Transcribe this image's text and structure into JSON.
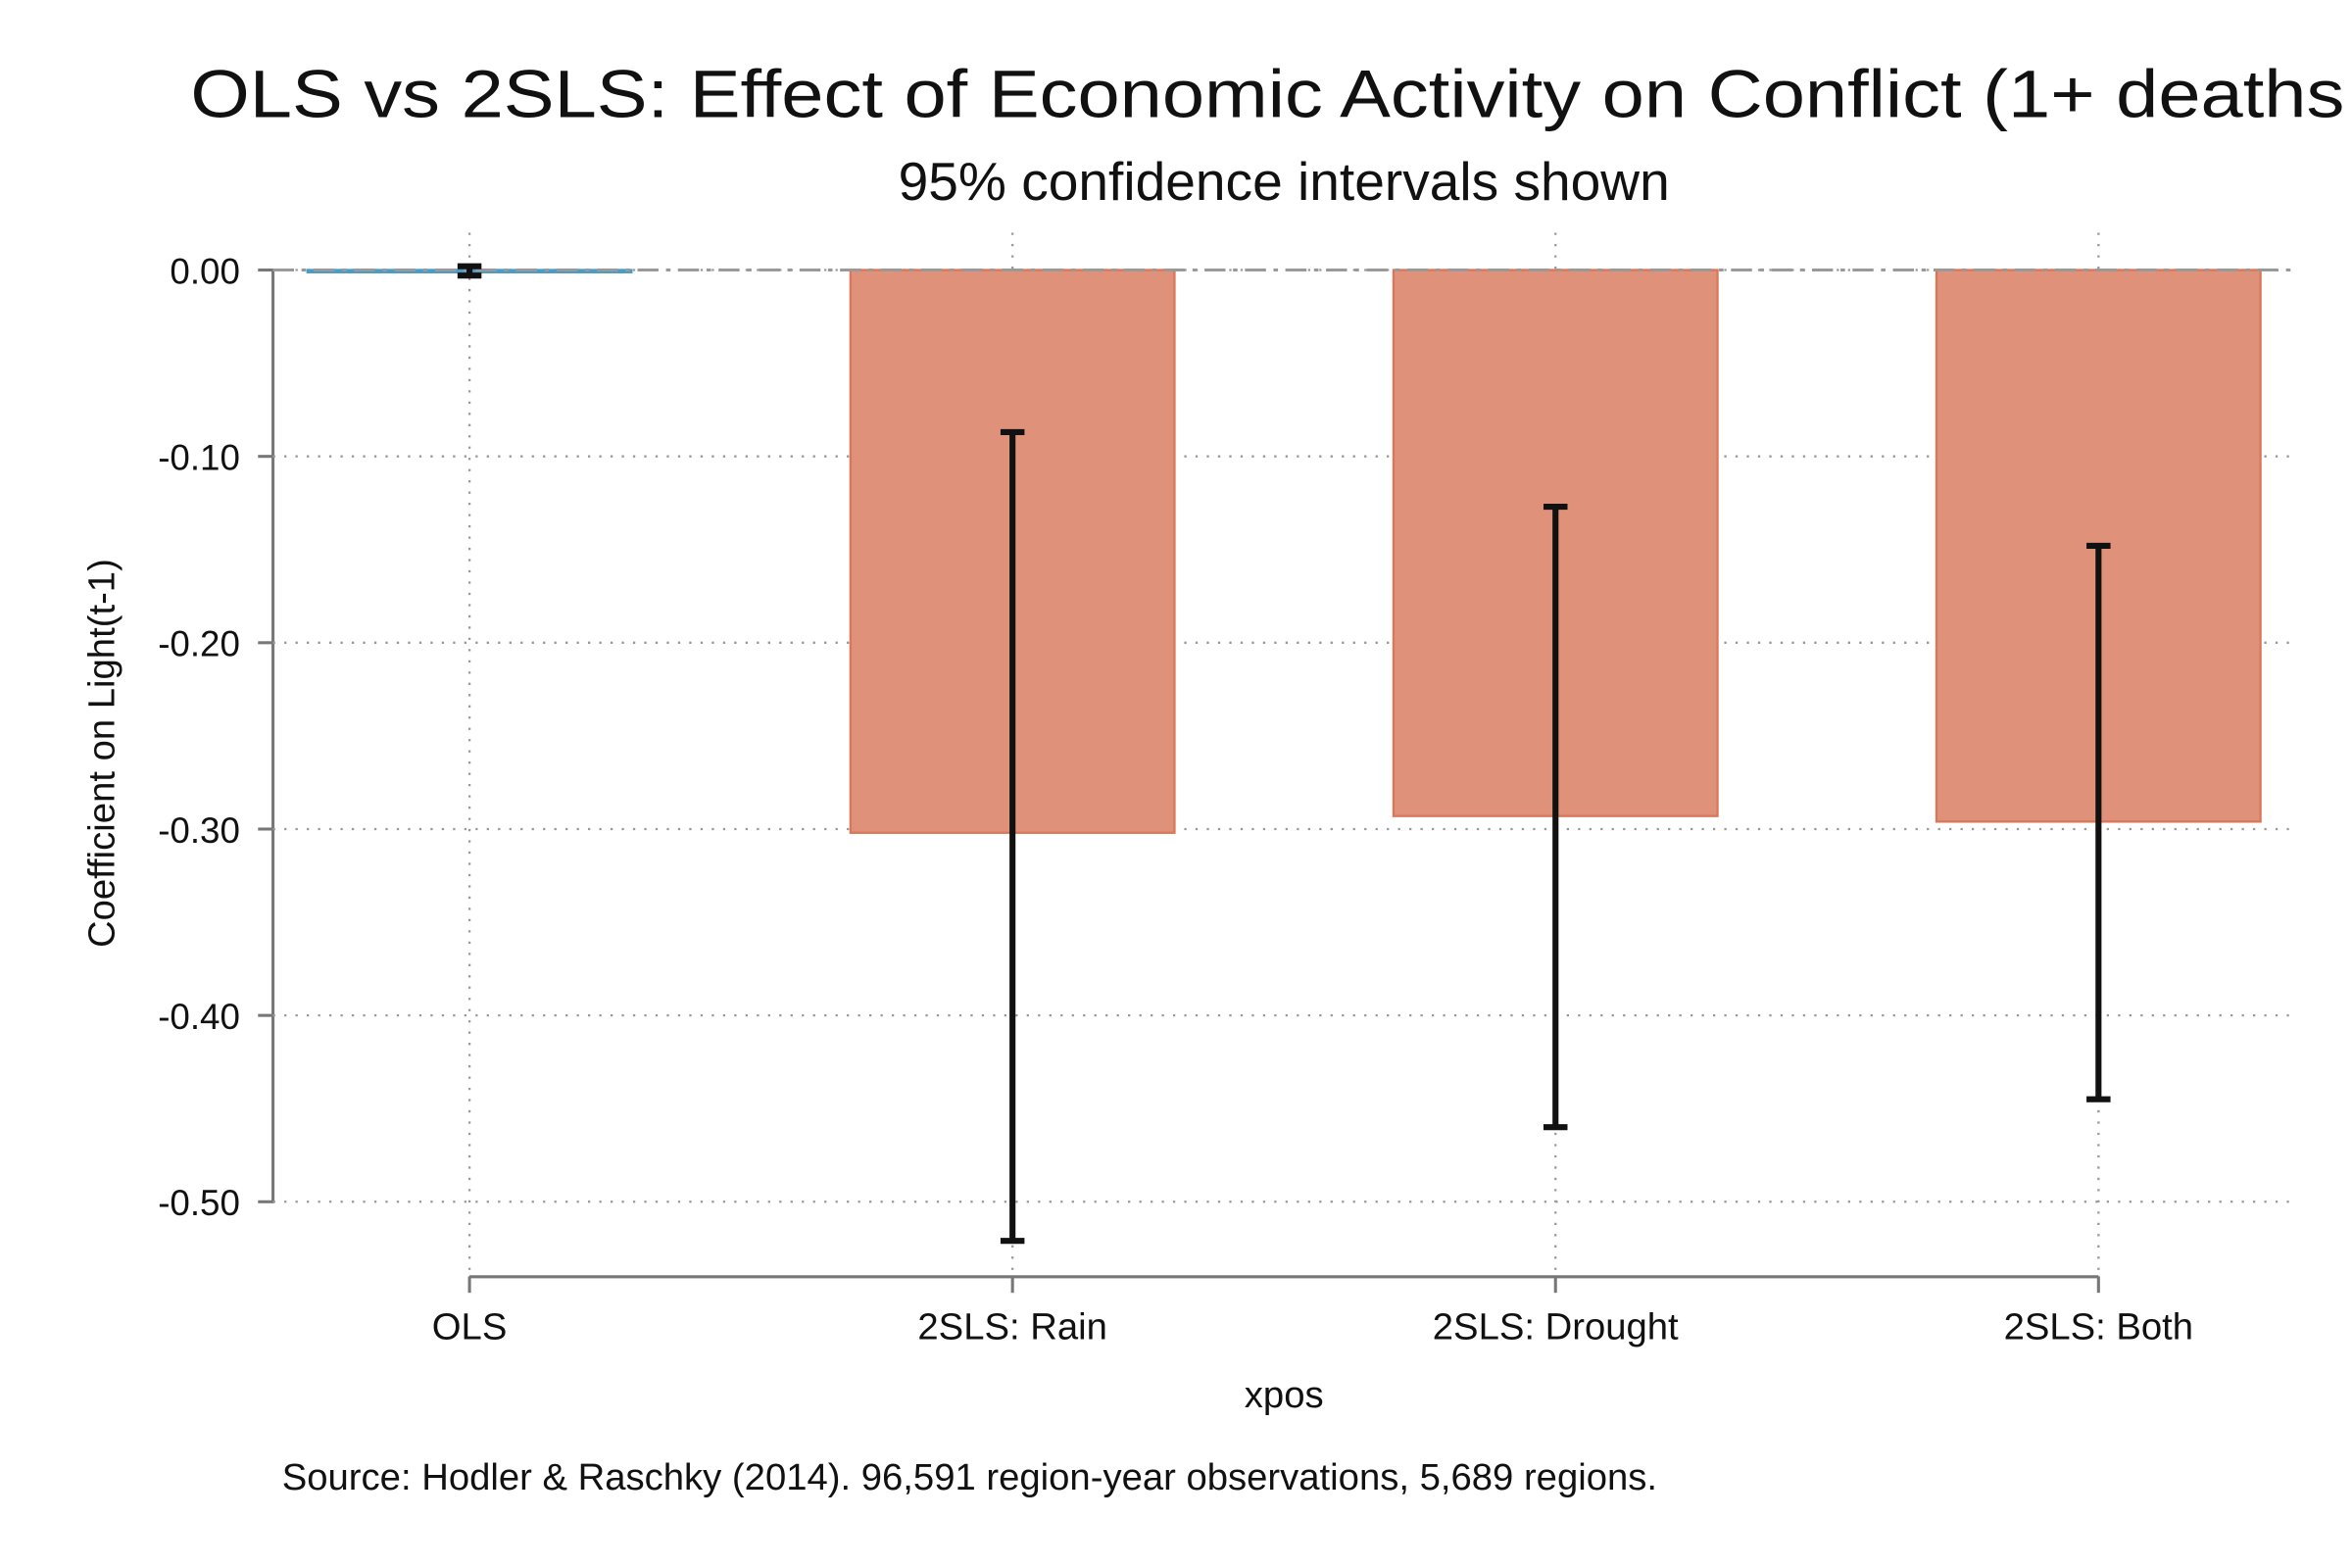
{
  "chart_data": {
    "type": "bar",
    "title": "OLS vs 2SLS: Effect of Economic Activity on Conflict (1+ deaths",
    "subtitle": "95% confidence intervals shown",
    "x_label": "xpos",
    "y_label": "Coefficient on Light(t-1)",
    "note": "Source: Hodler & Raschky (2014). 96,591 region-year observations, 5,689 regions.",
    "categories": [
      "OLS",
      "2SLS: Rain",
      "2SLS: Drought",
      "2SLS: Both"
    ],
    "values": [
      -0.0004,
      -0.302,
      -0.293,
      -0.296
    ],
    "ci_low": [
      -0.003,
      -0.521,
      -0.46,
      -0.445
    ],
    "ci_high": [
      0.002,
      -0.087,
      -0.127,
      -0.148
    ],
    "colors": [
      "#4a9cc4",
      "#e0917a",
      "#e0917a",
      "#e0917a"
    ],
    "ylim": [
      -0.54,
      0.02
    ],
    "yticks": [
      {
        "value": 0,
        "label": "0.00"
      },
      {
        "value": -0.1,
        "label": "-0.10"
      },
      {
        "value": -0.2,
        "label": "-0.20"
      },
      {
        "value": -0.3,
        "label": "-0.30"
      },
      {
        "value": -0.4,
        "label": "-0.40"
      },
      {
        "value": -0.5,
        "label": "-0.50"
      }
    ],
    "reference_line": 0,
    "grid": true
  }
}
